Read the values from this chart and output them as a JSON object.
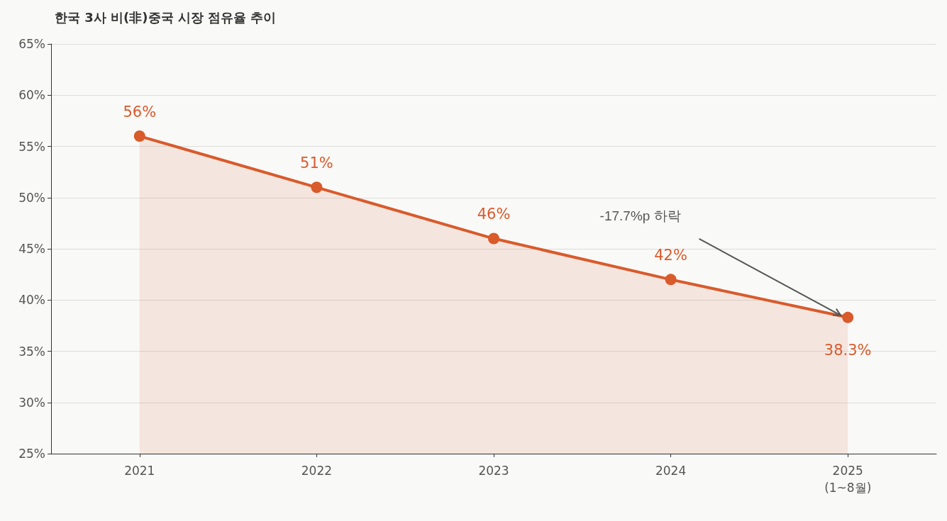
{
  "chart_data": {
    "type": "area",
    "title": "한국 3사 비(非)중국 시장 점유율 추이",
    "categories": [
      "2021",
      "2022",
      "2023",
      "2024",
      "2025\n(1~8월)"
    ],
    "series": [
      {
        "color": "#d95a2b",
        "values": [
          56,
          51,
          46,
          42,
          38.3
        ],
        "value_labels": [
          "56%",
          "51%",
          "46%",
          "42%",
          "38.3%"
        ]
      }
    ],
    "ylim": [
      25,
      65
    ],
    "yticks": [
      {
        "value": 25,
        "label": "25%"
      },
      {
        "value": 30,
        "label": "30%"
      },
      {
        "value": 35,
        "label": "35%"
      },
      {
        "value": 40,
        "label": "40%"
      },
      {
        "value": 45,
        "label": "45%"
      },
      {
        "value": 50,
        "label": "50%"
      },
      {
        "value": 55,
        "label": "55%"
      },
      {
        "value": 60,
        "label": "60%"
      },
      {
        "value": 65,
        "label": "65%"
      }
    ],
    "grid": "y",
    "marker": "circle",
    "line_style": "solid",
    "annotations": [
      "-17.7%p 하락"
    ]
  }
}
